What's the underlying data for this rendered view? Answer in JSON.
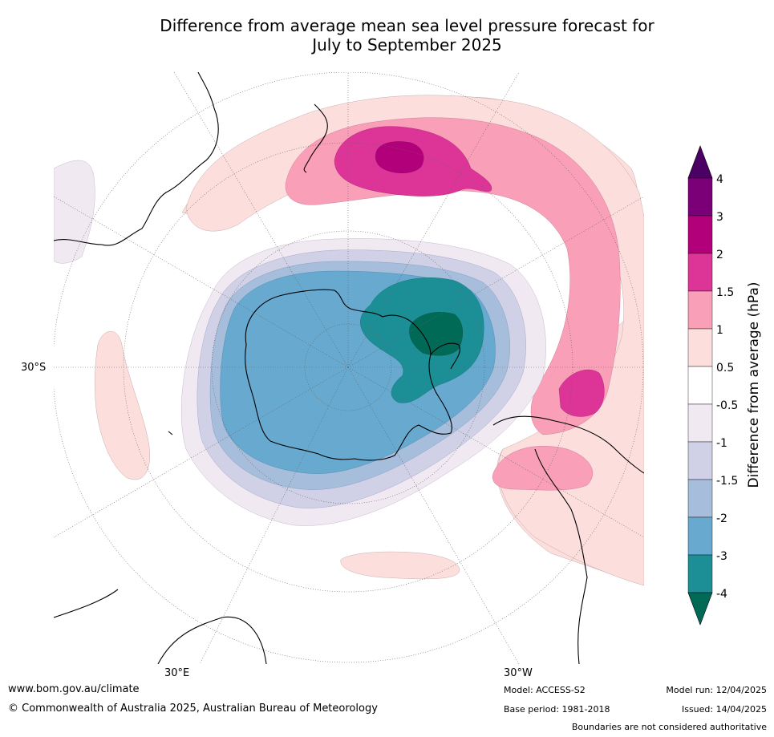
{
  "title_line1": "Difference from average mean sea level pressure forecast for",
  "title_line2": "July to September 2025",
  "labels": {
    "lat_30s": "30°S",
    "lon_30e": "30°E",
    "lon_30w": "30°W"
  },
  "colorbar": {
    "label": "Difference from average (hPa)",
    "ticks": [
      "4",
      "3",
      "2",
      "1.5",
      "1",
      "0.5",
      "-0.5",
      "-1",
      "-1.5",
      "-2",
      "-3",
      "-4"
    ],
    "colors": {
      "above_4": "#4b0066",
      "3_to_4": "#7b0077",
      "2_to_3": "#b1007a",
      "1.5_to_2": "#dd3497",
      "1_to_1.5": "#f99fb8",
      "0.5_to_1": "#fcdfdc",
      "neutral": "#ffffff",
      "-1_to_-0.5": "#f0e9f2",
      "-1.5_to_-1": "#d0d1e6",
      "-2_to_-1.5": "#a6bddb",
      "-3_to_-2": "#67a9cf",
      "-4_to_-3": "#1c8f96",
      "below_-4": "#006a57"
    }
  },
  "footer": {
    "url": "www.bom.gov.au/climate",
    "copyright": "© Commonwealth of Australia 2025, Australian Bureau of Meteorology",
    "model": "Model: ACCESS-S2",
    "base_period": "Base period: 1981-2018",
    "model_run": "Model run: 12/04/2025",
    "issued": "Issued: 14/04/2025",
    "boundaries": "Boundaries are not considered authoritative"
  }
}
